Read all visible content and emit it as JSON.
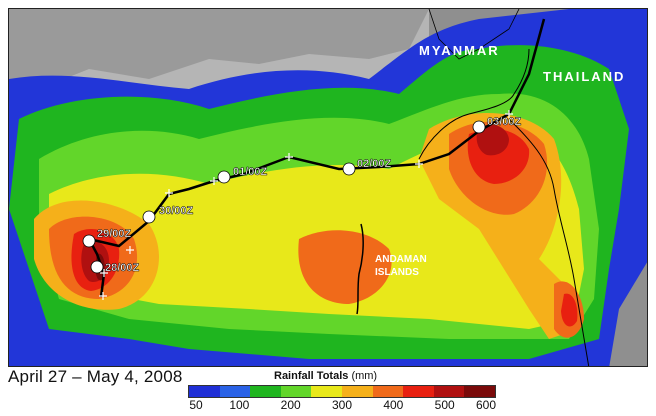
{
  "date_range": "April 27 – May 4,  2008",
  "legend": {
    "title_bold": "Rainfall Totals",
    "title_unit": "(mm)",
    "ticks": [
      "50",
      "100",
      "200",
      "300",
      "400",
      "500",
      "600"
    ],
    "colors": [
      "#1f2fd6",
      "#2a62e6",
      "#1fb51f",
      "#62d62a",
      "#e8e81a",
      "#f5b01a",
      "#f06a1a",
      "#e82010",
      "#b01010",
      "#7a0a0a"
    ]
  },
  "map_labels": {
    "myanmar": "MYANMAR",
    "thailand": "THAILAND",
    "andaman_1": "ANDAMAN",
    "andaman_2": "ISLANDS"
  },
  "track_labels": [
    "28/00Z",
    "29/00Z",
    "30/00Z",
    "01/00Z",
    "02/00Z",
    "03/00Z"
  ],
  "colors": {
    "land_gray": "#a9a9a9",
    "ocean_gray": "#b8b8b8",
    "track": "#000000"
  }
}
